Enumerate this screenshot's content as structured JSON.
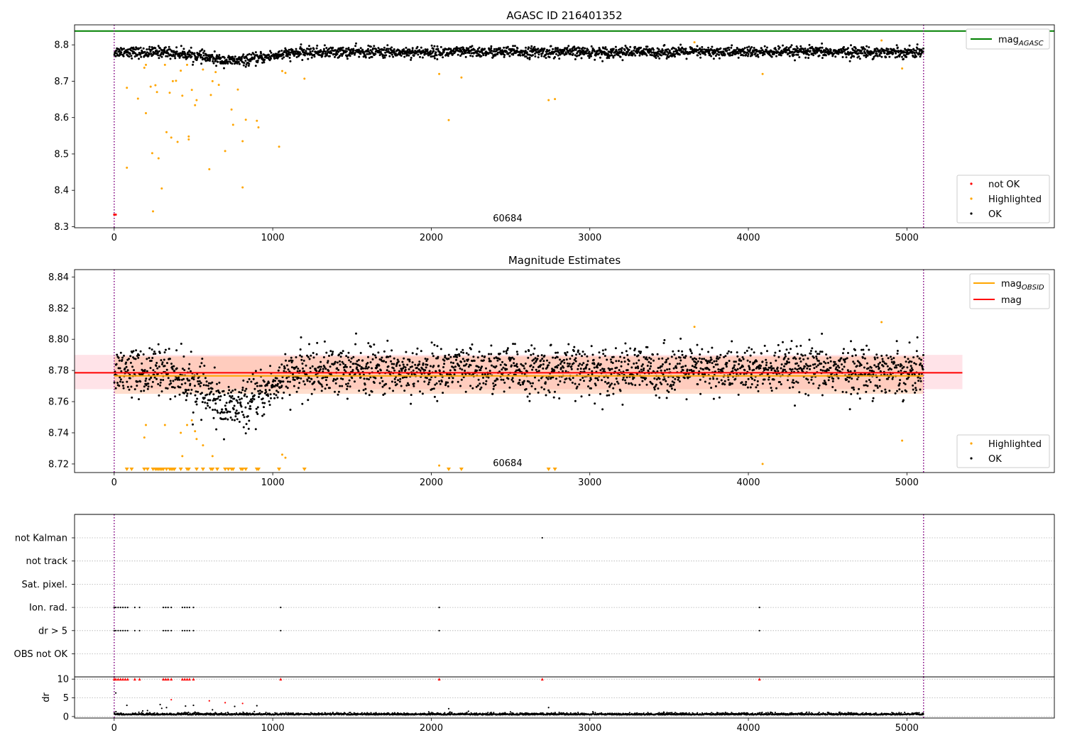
{
  "figure": {
    "title_top": "AGASC ID 216401352",
    "title_mid": "Magnitude Estimates",
    "obsid_label": "60684"
  },
  "chart_data": [
    {
      "id": "agasc_mag",
      "type": "scatter",
      "title": "AGASC ID 216401352",
      "xlabel": "",
      "ylabel": "",
      "xlim": [
        -250,
        5930
      ],
      "ylim": [
        8.297,
        8.855
      ],
      "xticks": [
        0,
        1000,
        2000,
        3000,
        4000,
        5000
      ],
      "yticks": [
        8.3,
        8.4,
        8.5,
        8.6,
        8.7,
        8.8
      ],
      "grid": false,
      "legend_position": "top-right and bottom-right",
      "reference_lines": [
        {
          "name": "mag_AGASC",
          "y": 8.838,
          "color": "#008000"
        }
      ],
      "vertical_lines": [
        {
          "x": 0,
          "color": "#800080",
          "style": "dotted"
        },
        {
          "x": 5105,
          "color": "#800080",
          "style": "dotted"
        }
      ],
      "annotation": {
        "text": "60684",
        "x": 2550
      },
      "series": [
        {
          "name": "not OK",
          "color": "#ff0000",
          "points": [
            [
              0,
              8.333
            ],
            [
              10,
              8.333
            ]
          ]
        },
        {
          "name": "Highlighted",
          "color": "#ffa500",
          "points": [
            [
              80,
              8.682
            ],
            [
              80,
              8.462
            ],
            [
              150,
              8.652
            ],
            [
              190,
              8.737
            ],
            [
              200,
              8.745
            ],
            [
              200,
              8.612
            ],
            [
              230,
              8.685
            ],
            [
              240,
              8.502
            ],
            [
              245,
              8.342
            ],
            [
              260,
              8.689
            ],
            [
              270,
              8.67
            ],
            [
              280,
              8.488
            ],
            [
              300,
              8.405
            ],
            [
              320,
              8.745
            ],
            [
              330,
              8.56
            ],
            [
              350,
              8.668
            ],
            [
              360,
              8.545
            ],
            [
              370,
              8.7
            ],
            [
              390,
              8.701
            ],
            [
              400,
              8.533
            ],
            [
              420,
              8.729
            ],
            [
              430,
              8.66
            ],
            [
              460,
              8.745
            ],
            [
              470,
              8.54
            ],
            [
              470,
              8.548
            ],
            [
              490,
              8.676
            ],
            [
              510,
              8.634
            ],
            [
              520,
              8.648
            ],
            [
              560,
              8.732
            ],
            [
              600,
              8.458
            ],
            [
              610,
              8.662
            ],
            [
              620,
              8.7
            ],
            [
              640,
              8.725
            ],
            [
              660,
              8.69
            ],
            [
              700,
              8.508
            ],
            [
              740,
              8.622
            ],
            [
              750,
              8.58
            ],
            [
              780,
              8.677
            ],
            [
              810,
              8.535
            ],
            [
              810,
              8.408
            ],
            [
              830,
              8.594
            ],
            [
              900,
              8.591
            ],
            [
              910,
              8.573
            ],
            [
              1040,
              8.52
            ],
            [
              1060,
              8.728
            ],
            [
              1080,
              8.723
            ],
            [
              1200,
              8.707
            ],
            [
              2050,
              8.72
            ],
            [
              2110,
              8.593
            ],
            [
              2190,
              8.71
            ],
            [
              2740,
              8.648
            ],
            [
              2780,
              8.651
            ],
            [
              3660,
              8.807
            ],
            [
              4090,
              8.72
            ],
            [
              4840,
              8.812
            ],
            [
              4970,
              8.735
            ]
          ]
        },
        {
          "name": "OK",
          "color": "#000000",
          "description": "≈2400 dense points; magnitude ~8.78 ± 0.01 across 0–5105 with a dip to ~8.755 between 400 and 1100"
        }
      ]
    },
    {
      "id": "magnitude_estimates",
      "type": "scatter",
      "title": "Magnitude Estimates",
      "xlabel": "",
      "ylabel": "",
      "xlim": [
        -250,
        5930
      ],
      "ylim": [
        8.7145,
        8.8447
      ],
      "xticks": [
        0,
        1000,
        2000,
        3000,
        4000,
        5000
      ],
      "yticks": [
        8.72,
        8.74,
        8.76,
        8.78,
        8.8,
        8.82,
        8.84
      ],
      "grid": false,
      "legend_position": "top-right and bottom-right",
      "bands": [
        {
          "name": "mag band",
          "x": [
            -250,
            5350
          ],
          "y": [
            8.768,
            8.79
          ],
          "color": "#ffc0cb",
          "opacity": 0.45
        },
        {
          "name": "mag_OBSID band",
          "x": [
            0,
            5105
          ],
          "y": [
            8.765,
            8.789
          ],
          "color": "#ffa070",
          "opacity": 0.35
        }
      ],
      "reference_lines": [
        {
          "name": "mag_OBSID",
          "y": 8.7765,
          "x": [
            0,
            5105
          ],
          "color": "#ffa500"
        },
        {
          "name": "mag",
          "y": 8.7785,
          "x": [
            -250,
            5350
          ],
          "color": "#ff0000"
        }
      ],
      "vertical_lines": [
        {
          "x": 0,
          "color": "#800080",
          "style": "dotted"
        },
        {
          "x": 5105,
          "color": "#800080",
          "style": "dotted"
        }
      ],
      "annotation": {
        "text": "60684",
        "x": 2550
      },
      "series": [
        {
          "name": "Highlighted",
          "color": "#ffa500",
          "points": [
            [
              190,
              8.737
            ],
            [
              200,
              8.745
            ],
            [
              320,
              8.745
            ],
            [
              420,
              8.74
            ],
            [
              430,
              8.725
            ],
            [
              460,
              8.745
            ],
            [
              490,
              8.748
            ],
            [
              510,
              8.741
            ],
            [
              520,
              8.736
            ],
            [
              560,
              8.732
            ],
            [
              620,
              8.725
            ],
            [
              1060,
              8.726
            ],
            [
              1080,
              8.724
            ],
            [
              2050,
              8.719
            ],
            [
              3660,
              8.808
            ],
            [
              4090,
              8.72
            ],
            [
              4840,
              8.811
            ],
            [
              4970,
              8.735
            ]
          ]
        },
        {
          "name": "OK",
          "color": "#000000",
          "description": "≈2400 dense points; ~8.78 ± 0.01, dip to ~8.755 between 400 and 1100"
        },
        {
          "name": "below-range markers",
          "color": "#ffa500",
          "marker": "triangle-down",
          "x": [
            80,
            110,
            190,
            210,
            245,
            260,
            270,
            280,
            290,
            300,
            310,
            330,
            350,
            360,
            370,
            380,
            420,
            460,
            470,
            520,
            560,
            610,
            620,
            650,
            700,
            720,
            740,
            750,
            800,
            810,
            830,
            900,
            910,
            1040,
            1200,
            2110,
            2190,
            2740,
            2780
          ]
        }
      ]
    },
    {
      "id": "flags",
      "type": "scatter",
      "xlabel": "",
      "ylabel": "",
      "xlim": [
        -250,
        5930
      ],
      "categories": [
        "not Kalman",
        "not track",
        "Sat. pixel.",
        "Ion. rad.",
        "dr > 5",
        "OBS not OK"
      ],
      "grid": true,
      "vertical_lines": [
        {
          "x": 0,
          "color": "#800080",
          "style": "dotted"
        },
        {
          "x": 5105,
          "color": "#800080",
          "style": "dotted"
        }
      ],
      "series": [
        {
          "name": "not Kalman",
          "values_x": [
            2700
          ]
        },
        {
          "name": "Ion. rad.",
          "values_x": [
            0,
            10,
            25,
            40,
            55,
            70,
            85,
            130,
            160,
            310,
            325,
            340,
            360,
            430,
            445,
            460,
            475,
            500,
            1050,
            2050,
            4070
          ]
        },
        {
          "name": "dr > 5",
          "values_x": [
            0,
            10,
            25,
            40,
            55,
            70,
            85,
            130,
            160,
            310,
            325,
            340,
            360,
            430,
            445,
            460,
            475,
            500,
            1050,
            2050,
            4070
          ]
        }
      ]
    },
    {
      "id": "dr",
      "type": "scatter",
      "xlabel": "",
      "ylabel": "dr",
      "xlim": [
        -250,
        5930
      ],
      "ylim": [
        -0.4,
        10.6
      ],
      "xticks": [
        0,
        1000,
        2000,
        3000,
        4000,
        5000
      ],
      "yticks": [
        0,
        5,
        10
      ],
      "grid": true,
      "vertical_lines": [
        {
          "x": 0,
          "color": "#800080",
          "style": "dotted"
        },
        {
          "x": 5105,
          "color": "#800080",
          "style": "dotted"
        }
      ],
      "series": [
        {
          "name": "clipped (>10)",
          "color": "#ff0000",
          "marker": "triangle-up",
          "x": [
            0,
            10,
            25,
            40,
            55,
            70,
            85,
            130,
            160,
            310,
            325,
            340,
            360,
            430,
            445,
            460,
            475,
            500,
            1050,
            2050,
            2700,
            4070
          ]
        },
        {
          "name": "red dr",
          "color": "#ff0000",
          "points": [
            [
              360,
              4.5
            ],
            [
              600,
              4.2
            ],
            [
              700,
              3.7
            ],
            [
              810,
              3.5
            ]
          ]
        },
        {
          "name": "black dr",
          "color": "#000000",
          "points": [
            [
              10,
              6.3
            ],
            [
              80,
              3.0
            ],
            [
              180,
              1.5
            ],
            [
              210,
              1.6
            ],
            [
              290,
              3.2
            ],
            [
              300,
              2.2
            ],
            [
              330,
              2.4
            ],
            [
              450,
              2.8
            ],
            [
              500,
              3.0
            ],
            [
              620,
              1.8
            ],
            [
              760,
              2.7
            ],
            [
              900,
              2.9
            ],
            [
              2110,
              2.1
            ],
            [
              2740,
              2.4
            ]
          ]
        },
        {
          "name": "dr baseline",
          "color": "#000000",
          "description": "≈2400 points near 0.2–0.9"
        }
      ]
    }
  ],
  "legends": {
    "top_right_1": [
      "mag_AGASC"
    ],
    "bottom_right_1": [
      "not OK",
      "Highlighted",
      "OK"
    ],
    "top_right_2": [
      "mag_OBSID",
      "mag"
    ],
    "bottom_right_2": [
      "Highlighted",
      "OK"
    ]
  },
  "tick_text": {
    "x": [
      "0",
      "1000",
      "2000",
      "3000",
      "4000",
      "5000"
    ],
    "y1": [
      "8.3",
      "8.4",
      "8.5",
      "8.6",
      "8.7",
      "8.8"
    ],
    "y2": [
      "8.72",
      "8.74",
      "8.76",
      "8.78",
      "8.80",
      "8.82",
      "8.84"
    ],
    "flags": [
      "not Kalman",
      "not track",
      "Sat. pixel.",
      "Ion. rad.",
      "dr > 5",
      "OBS not OK"
    ],
    "y4": [
      "0",
      "5",
      "10"
    ]
  },
  "labels": {
    "legend_mag": "mag",
    "legend_not_ok": "not OK",
    "legend_highlighted": "Highlighted",
    "legend_ok": "OK",
    "legend_mag_sub_agasc": "AGASC",
    "legend_mag_sub_obsid": "OBSID",
    "dr_ylabel": "dr"
  },
  "colors": {
    "ok": "#000000",
    "highlighted": "#ffa500",
    "not_ok": "#ff0000",
    "agasc_line": "#008000",
    "mag_line": "#ff0000",
    "obsid_line": "#ffa500",
    "vline": "#800080"
  }
}
